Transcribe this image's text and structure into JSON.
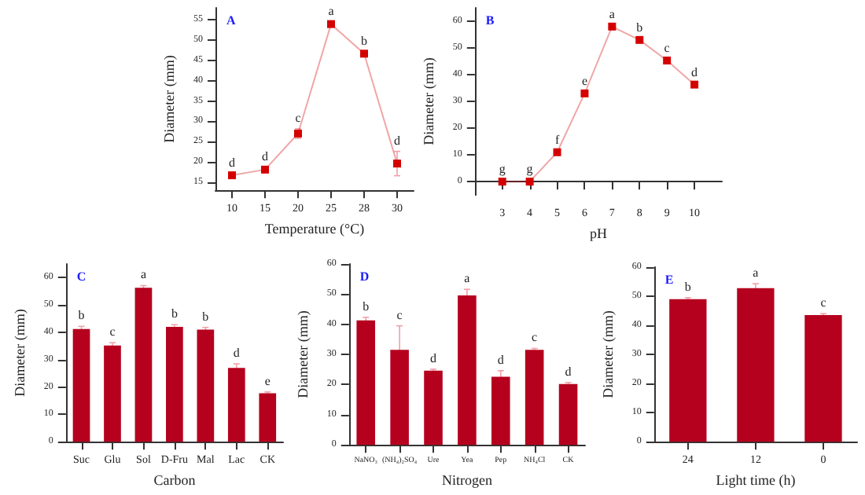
{
  "chart_data": [
    {
      "type": "line",
      "title": "A",
      "xlabel": "Temperature (°C)",
      "ylabel": "Diameter (mm)",
      "categories": [
        "10",
        "15",
        "20",
        "25",
        "28",
        "30"
      ],
      "marker": "square",
      "series": [
        {
          "color": "#d40000",
          "values": [
            16.7,
            18.1,
            27,
            54,
            46.7,
            19.6
          ],
          "errors": [
            0.5,
            0.5,
            1.2,
            0.5,
            0.5,
            3
          ]
        }
      ],
      "ylim": [
        13,
        58
      ],
      "yticks": [
        15,
        20,
        25,
        30,
        35,
        40,
        45,
        50,
        55
      ],
      "annotations": [
        {
          "text": "d",
          "x": "10",
          "y": 16.7
        },
        {
          "text": "d",
          "x": "15",
          "y": 18.1
        },
        {
          "text": "c",
          "x": "20",
          "y": 27
        },
        {
          "text": "a",
          "x": "25",
          "y": 54
        },
        {
          "text": "b",
          "x": "28",
          "y": 46.7
        },
        {
          "text": "d",
          "x": "30",
          "y": 19.6
        }
      ]
    },
    {
      "type": "line",
      "title": "B",
      "xlabel": "pH",
      "ylabel": "Diameter (mm)",
      "x": [
        3,
        4,
        5,
        6,
        7,
        8,
        9,
        10
      ],
      "marker": "square",
      "series": [
        {
          "color": "#d40000",
          "values": [
            0,
            0,
            11,
            33,
            58,
            53,
            45.3,
            36.3
          ],
          "errors": [
            0.5,
            0.5,
            0.5,
            0.5,
            0.5,
            0.5,
            0.5,
            0.5
          ]
        }
      ],
      "xlim": [
        2,
        11
      ],
      "xticks": [
        3,
        4,
        5,
        6,
        7,
        8,
        9,
        10
      ],
      "ylim": [
        -5,
        65
      ],
      "yticks": [
        0,
        10,
        20,
        30,
        40,
        50,
        60
      ],
      "annotations": [
        {
          "text": "g",
          "x": 3,
          "y": 0
        },
        {
          "text": "g",
          "x": 4,
          "y": 0
        },
        {
          "text": "f",
          "x": 5,
          "y": 11
        },
        {
          "text": "e",
          "x": 6,
          "y": 33
        },
        {
          "text": "a",
          "x": 7,
          "y": 58
        },
        {
          "text": "b",
          "x": 8,
          "y": 53
        },
        {
          "text": "c",
          "x": 9,
          "y": 45.3
        },
        {
          "text": "d",
          "x": 10,
          "y": 36.3
        }
      ]
    },
    {
      "type": "bar",
      "title": "C",
      "xlabel": "Carbon",
      "ylabel": "Diameter (mm)",
      "categories": [
        "Suc",
        "Glu",
        "Sol",
        "D-Fru",
        "Mal",
        "Lac",
        "CK"
      ],
      "series": [
        {
          "color": "#b5001e",
          "values": [
            41.2,
            35.2,
            56.3,
            42,
            41,
            27,
            17.7
          ],
          "errors": [
            1,
            1,
            0.8,
            0.8,
            0.8,
            1.5,
            0.5
          ]
        }
      ],
      "ylim": [
        0,
        65
      ],
      "yticks": [
        0,
        10,
        20,
        30,
        40,
        50,
        60
      ],
      "annotations": [
        {
          "text": "b",
          "x": "Suc",
          "y": 41.2
        },
        {
          "text": "c",
          "x": "Glu",
          "y": 35.2
        },
        {
          "text": "a",
          "x": "Sol",
          "y": 56.3
        },
        {
          "text": "b",
          "x": "D-Fru",
          "y": 42
        },
        {
          "text": "b",
          "x": "Mal",
          "y": 41
        },
        {
          "text": "d",
          "x": "Lac",
          "y": 27
        },
        {
          "text": "e",
          "x": "CK",
          "y": 17.7
        }
      ]
    },
    {
      "type": "bar",
      "title": "D",
      "xlabel": "Nitrogen",
      "ylabel": "Diameter (mm)",
      "categories": [
        "NaNO₃",
        "(NH₄)₂SO₄",
        "Ure",
        "Yea",
        "Pep",
        "NH₄Cl",
        "CK"
      ],
      "series": [
        {
          "color": "#b5001e",
          "values": [
            41.3,
            31.5,
            24.6,
            49.6,
            22.6,
            31.5,
            20.2
          ],
          "errors": [
            1,
            8,
            0.5,
            2,
            2,
            0.5,
            0.5
          ]
        }
      ],
      "ylim": [
        0,
        60
      ],
      "yticks": [
        0,
        10,
        20,
        30,
        40,
        50,
        60
      ],
      "annotations": [
        {
          "text": "b",
          "x": "NaNO₃",
          "y": 41.3
        },
        {
          "text": "c",
          "x": "(NH₄)₂SO₄",
          "y": 31.5
        },
        {
          "text": "d",
          "x": "Ure",
          "y": 24.6
        },
        {
          "text": "a",
          "x": "Yea",
          "y": 49.6
        },
        {
          "text": "d",
          "x": "Pep",
          "y": 22.6
        },
        {
          "text": "c",
          "x": "NH₄Cl",
          "y": 31.5
        },
        {
          "text": "d",
          "x": "CK",
          "y": 20.2
        }
      ]
    },
    {
      "type": "bar",
      "title": "E",
      "xlabel": "Light time (h)",
      "ylabel": "Diameter (mm)",
      "categories": [
        "24",
        "12",
        "0"
      ],
      "series": [
        {
          "color": "#b5001e",
          "values": [
            49,
            52.8,
            43.5
          ],
          "errors": [
            0.5,
            1.5,
            0.5
          ]
        }
      ],
      "ylim": [
        0,
        60
      ],
      "yticks": [
        0,
        10,
        20,
        30,
        40,
        50,
        60
      ],
      "annotations": [
        {
          "text": "b",
          "x": "24",
          "y": 49
        },
        {
          "text": "a",
          "x": "12",
          "y": 52.8
        },
        {
          "text": "c",
          "x": "0",
          "y": 43.5
        }
      ]
    }
  ]
}
